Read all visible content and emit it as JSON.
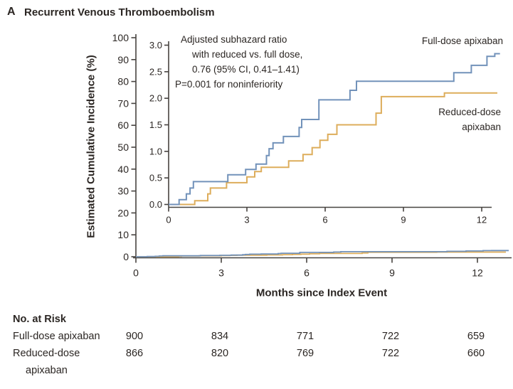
{
  "title": {
    "panel": "A",
    "text": "Recurrent Venous Thromboembolism"
  },
  "annotation": {
    "lines": [
      "Adjusted subhazard ratio",
      "with reduced vs. full dose,",
      "0.76 (95% CI, 0.41–1.41)",
      "P=0.001 for noninferiority"
    ]
  },
  "legend": {
    "full_dose_label": "Full-dose apixaban",
    "reduced_dose_label_line1": "Reduced-dose",
    "reduced_dose_label_line2": "apixaban"
  },
  "colors": {
    "full_dose_line": "#7292ba",
    "reduced_dose_line": "#ddad5b",
    "text": "#2b2623",
    "axis": "#474340"
  },
  "chart_data": {
    "type": "line",
    "subtype": "step-cumulative-incidence",
    "title": "Recurrent Venous Thromboembolism",
    "xlabel": "Months since Index Event",
    "ylabel": "Estimated Cumulative Incidence (%)",
    "grid": false,
    "main_axis": {
      "xlim": [
        0,
        13.3
      ],
      "ylim": [
        0,
        100
      ],
      "xticks": [
        0,
        3,
        6,
        9,
        12
      ],
      "yticks": [
        0,
        10,
        20,
        30,
        40,
        50,
        60,
        70,
        80,
        90,
        100
      ],
      "data_end_month": 13.1
    },
    "inset_axis": {
      "xlim": [
        0,
        12.4
      ],
      "ylim": [
        0.0,
        3.0
      ],
      "xticks": [
        0,
        3,
        6,
        9,
        12
      ],
      "yticks": [
        0.0,
        0.5,
        1.0,
        1.5,
        2.0,
        2.5,
        3.0
      ],
      "data_end_month": 12.7
    },
    "series": [
      {
        "name": "Full-dose apixaban",
        "color": "#7292ba",
        "points": [
          [
            0,
            0
          ],
          [
            0.4,
            0.09
          ],
          [
            0.68,
            0.2
          ],
          [
            0.82,
            0.31
          ],
          [
            0.95,
            0.43
          ],
          [
            2.27,
            0.56
          ],
          [
            2.95,
            0.66
          ],
          [
            3.35,
            0.76
          ],
          [
            3.75,
            0.92
          ],
          [
            3.85,
            1.05
          ],
          [
            4.0,
            1.16
          ],
          [
            4.4,
            1.28
          ],
          [
            5.0,
            1.45
          ],
          [
            5.1,
            1.6
          ],
          [
            5.76,
            1.97
          ],
          [
            6.95,
            2.15
          ],
          [
            7.2,
            2.32
          ],
          [
            10.93,
            2.48
          ],
          [
            11.6,
            2.62
          ],
          [
            12.2,
            2.79
          ],
          [
            12.5,
            2.84
          ]
        ]
      },
      {
        "name": "Reduced-dose apixaban",
        "color": "#ddad5b",
        "points": [
          [
            0,
            0
          ],
          [
            1.0,
            0.07
          ],
          [
            1.5,
            0.2
          ],
          [
            1.6,
            0.31
          ],
          [
            2.22,
            0.41
          ],
          [
            3.0,
            0.52
          ],
          [
            3.3,
            0.62
          ],
          [
            3.55,
            0.7
          ],
          [
            4.6,
            0.82
          ],
          [
            5.15,
            0.94
          ],
          [
            5.5,
            1.07
          ],
          [
            5.8,
            1.21
          ],
          [
            6.1,
            1.32
          ],
          [
            6.45,
            1.5
          ],
          [
            7.95,
            1.72
          ],
          [
            8.15,
            2.03
          ],
          [
            10.57,
            2.1
          ]
        ]
      }
    ]
  },
  "risk_table": {
    "header": "No. at Risk",
    "columns_months": [
      0,
      3,
      6,
      9,
      12
    ],
    "rows": [
      {
        "label": "Full-dose apixaban",
        "counts": [
          900,
          834,
          771,
          722,
          659
        ]
      },
      {
        "label_line1": "Reduced-dose",
        "label_line2": "apixaban",
        "counts": [
          866,
          820,
          769,
          722,
          660
        ]
      }
    ]
  }
}
